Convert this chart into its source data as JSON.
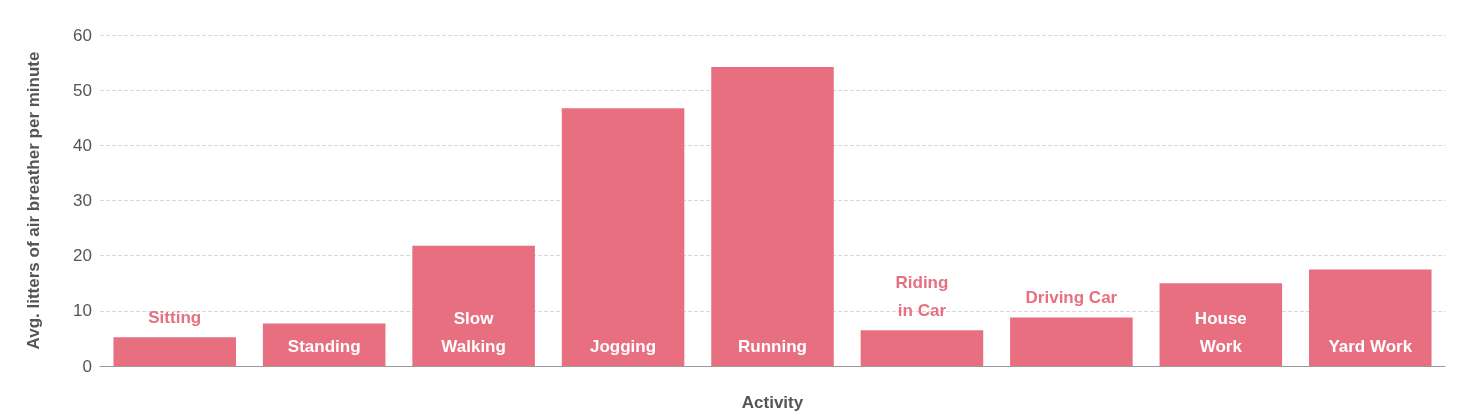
{
  "chart_data": {
    "type": "bar",
    "xlabel": "Activity",
    "ylabel": "Avg. litters of air breather per minute",
    "categories": [
      "Sitting",
      "Standing",
      "Slow Walking",
      "Jogging",
      "Running",
      "Riding in Car",
      "Driving Car",
      "House Work",
      "Yard Work"
    ],
    "values": [
      5.2,
      7.7,
      21.8,
      46.7,
      54.2,
      6.5,
      8.8,
      15.0,
      17.5
    ],
    "color": "#e86f80",
    "ylim": [
      0,
      60
    ],
    "yticks": [
      0,
      10,
      20,
      30,
      40,
      50,
      60
    ],
    "grid": "y",
    "tick_labels": "y"
  }
}
